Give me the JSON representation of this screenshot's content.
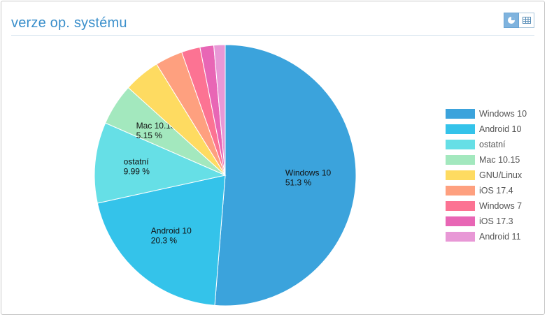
{
  "header": {
    "title": "verze op. systému"
  },
  "view_toggle": [
    {
      "name": "pie-view-button",
      "icon": "pie-chart-icon",
      "active": true
    },
    {
      "name": "table-view-button",
      "icon": "table-icon",
      "active": false
    }
  ],
  "chart_data": {
    "type": "pie",
    "legend_position": "right",
    "slices": [
      {
        "label": "Windows 10",
        "value": 51.3,
        "value_label": "51.3 %",
        "color": "#3ba3dc",
        "show_label": true
      },
      {
        "label": "Android 10",
        "value": 20.3,
        "value_label": "20.3 %",
        "color": "#34c3ea",
        "show_label": true
      },
      {
        "label": "ostatní",
        "value": 9.99,
        "value_label": "9.99 %",
        "color": "#66dfe6",
        "show_label": true
      },
      {
        "label": "Mac 10.15",
        "value": 5.15,
        "value_label": "5.15 %",
        "color": "#a3e8be",
        "show_label": true
      },
      {
        "label": "GNU/Linux",
        "value": 4.5,
        "value_label": "",
        "color": "#fedb61",
        "show_label": false
      },
      {
        "label": "iOS 17.4",
        "value": 3.4,
        "value_label": "",
        "color": "#fea07f",
        "show_label": false
      },
      {
        "label": "Windows 7",
        "value": 2.3,
        "value_label": "",
        "color": "#fc7393",
        "show_label": false
      },
      {
        "label": "iOS 17.3",
        "value": 1.7,
        "value_label": "",
        "color": "#e866b5",
        "show_label": false
      },
      {
        "label": "Android 11",
        "value": 1.4,
        "value_label": "",
        "color": "#e898d6",
        "show_label": false
      }
    ]
  }
}
